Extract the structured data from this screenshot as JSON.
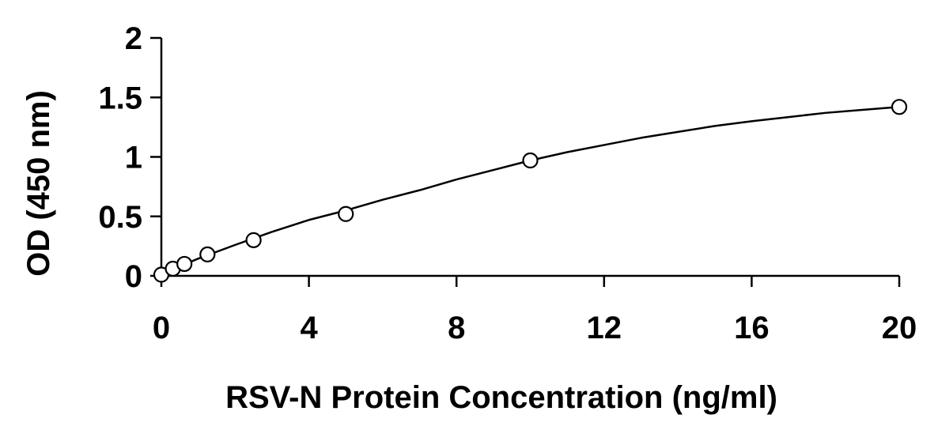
{
  "chart_data": {
    "type": "scatter",
    "title": "",
    "xlabel": "RSV-N Protein Concentration (ng/ml)",
    "ylabel": "OD (450 nm)",
    "xlim": [
      0,
      20
    ],
    "ylim": [
      0,
      2
    ],
    "x_ticks": [
      0,
      4,
      8,
      12,
      16,
      20
    ],
    "y_ticks": [
      {
        "value": 0,
        "label": "0"
      },
      {
        "value": 0.5,
        "label": "0.5"
      },
      {
        "value": 1,
        "label": "1"
      },
      {
        "value": 1.5,
        "label": "1.5"
      },
      {
        "value": 2,
        "label": "2"
      }
    ],
    "grid": false,
    "legend": "none",
    "series": [
      {
        "marker": "open-circle",
        "x": [
          0,
          0.3125,
          0.625,
          1.25,
          2.5,
          5,
          10,
          20
        ],
        "y": [
          0.01,
          0.06,
          0.1,
          0.18,
          0.3,
          0.52,
          0.97,
          1.42
        ]
      }
    ],
    "fit_curve": {
      "x": [
        0,
        0.5,
        1,
        2,
        3,
        4,
        5,
        6,
        7,
        8,
        9,
        10,
        11,
        12,
        13,
        14,
        15,
        16,
        17,
        18,
        19,
        20
      ],
      "y": [
        0.01,
        0.08,
        0.145,
        0.26,
        0.37,
        0.47,
        0.55,
        0.64,
        0.72,
        0.81,
        0.89,
        0.97,
        1.04,
        1.1,
        1.16,
        1.21,
        1.26,
        1.3,
        1.335,
        1.37,
        1.395,
        1.42
      ]
    },
    "colors": {
      "marker_stroke": "#000000",
      "marker_fill": "#ffffff",
      "line": "#000000",
      "axis": "#000000"
    }
  }
}
